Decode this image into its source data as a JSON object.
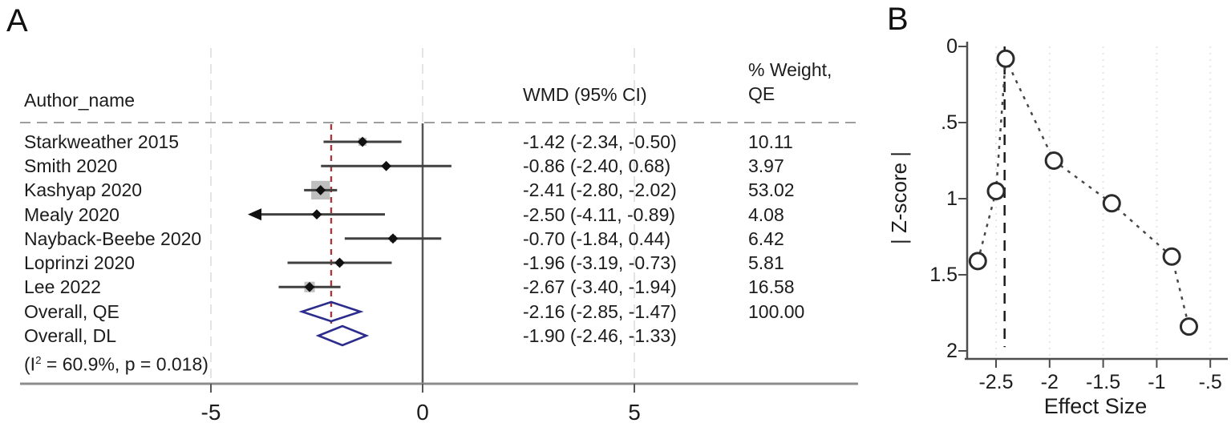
{
  "panels": {
    "a_label": "A",
    "b_label": "B"
  },
  "colors": {
    "text": "#1c1c1c",
    "ci_line": "#404040",
    "marker": "#111111",
    "weight_box": "#b4b4b4",
    "diamond": "#2c2c8c",
    "pooled_line_red": "#9e3c3e",
    "grid": "#dedede",
    "separator": "#9e9e9e",
    "axis_gray": "#8c8c8c",
    "zero_line": "#555555",
    "b_axis": "#4d4d4d",
    "b_grid": "#e5e5e5",
    "b_vline": "#1c1c1c",
    "b_connector": "#474747",
    "b_circle": "#2b2b2b"
  },
  "chart_data": [
    {
      "type": "forest",
      "panel": "A",
      "columns": {
        "author": "Author_name",
        "wmd": "WMD (95% CI)",
        "weight_line1": "% Weight,",
        "weight_line2": "QE"
      },
      "x_ticks": [
        "-5",
        "0",
        "5"
      ],
      "x_tick_values": [
        -5,
        0,
        5
      ],
      "null_line": 0,
      "pooled_line": -2.16,
      "studies": [
        {
          "name": "Starkweather 2015",
          "est": -1.42,
          "lo": -2.34,
          "hi": -0.5,
          "weight": 10.11,
          "wmd_text": "-1.42 (-2.34, -0.50)",
          "weight_text": "10.11",
          "arrow": false
        },
        {
          "name": "Smith 2020",
          "est": -0.86,
          "lo": -2.4,
          "hi": 0.68,
          "weight": 3.97,
          "wmd_text": "-0.86 (-2.40, 0.68)",
          "weight_text": "3.97",
          "arrow": false
        },
        {
          "name": "Kashyap 2020",
          "est": -2.41,
          "lo": -2.8,
          "hi": -2.02,
          "weight": 53.02,
          "wmd_text": "-2.41 (-2.80, -2.02)",
          "weight_text": "53.02",
          "arrow": false
        },
        {
          "name": "Mealy 2020",
          "est": -2.5,
          "lo": -4.11,
          "hi": -0.89,
          "weight": 4.08,
          "wmd_text": "-2.50 (-4.11, -0.89)",
          "weight_text": "4.08",
          "arrow": true
        },
        {
          "name": "Nayback-Beebe 2020",
          "est": -0.7,
          "lo": -1.84,
          "hi": 0.44,
          "weight": 6.42,
          "wmd_text": "-0.70 (-1.84, 0.44)",
          "weight_text": "6.42",
          "arrow": false
        },
        {
          "name": "Loprinzi 2020",
          "est": -1.96,
          "lo": -3.19,
          "hi": -0.73,
          "weight": 5.81,
          "wmd_text": "-1.96 (-3.19, -0.73)",
          "weight_text": "5.81",
          "arrow": false
        },
        {
          "name": "Lee 2022",
          "est": -2.67,
          "lo": -3.4,
          "hi": -1.94,
          "weight": 16.58,
          "wmd_text": "-2.67 (-3.40, -1.94)",
          "weight_text": "16.58",
          "arrow": false
        }
      ],
      "overall": [
        {
          "name": "Overall, QE",
          "est": -2.16,
          "lo": -2.85,
          "hi": -1.47,
          "wmd_text": "-2.16 (-2.85, -1.47)",
          "weight_text": "100.00"
        },
        {
          "name": "Overall, DL",
          "est": -1.9,
          "lo": -2.46,
          "hi": -1.33,
          "wmd_text": "-1.90 (-2.46, -1.33)",
          "weight_text": ""
        }
      ],
      "het_note": {
        "pre": "(I",
        "sup": "2",
        "post": " = 60.9%, p = 0.018)"
      }
    },
    {
      "type": "scatter",
      "panel": "B",
      "xlabel": "Effect Size",
      "ylabel": "| Z-score |",
      "x_ticks": [
        "-2.5",
        "-2",
        "-1.5",
        "-1",
        "-.5"
      ],
      "x_tick_values": [
        -2.5,
        -2,
        -1.5,
        -1,
        -0.5
      ],
      "y_ticks": [
        "0",
        ".5",
        "1",
        "1.5",
        "2"
      ],
      "y_tick_values": [
        0,
        0.5,
        1,
        1.5,
        2
      ],
      "y_axis_reversed": true,
      "marker": "hollow-circle",
      "connector": "dotted",
      "vline_x": -2.42,
      "points": [
        {
          "x": -2.67,
          "z": 1.41
        },
        {
          "x": -2.5,
          "z": 0.95
        },
        {
          "x": -2.41,
          "z": 0.08
        },
        {
          "x": -1.96,
          "z": 0.75
        },
        {
          "x": -1.42,
          "z": 1.03
        },
        {
          "x": -0.86,
          "z": 1.38
        },
        {
          "x": -0.7,
          "z": 1.84
        }
      ]
    }
  ]
}
